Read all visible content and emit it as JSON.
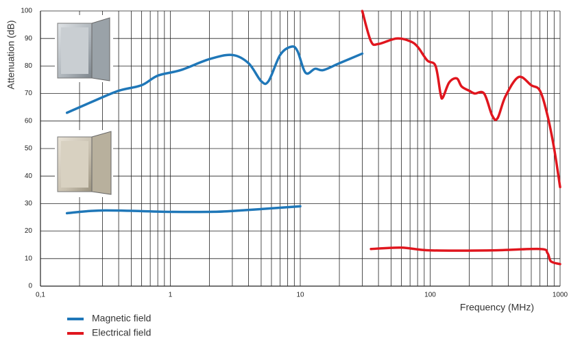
{
  "chart_data": {
    "type": "line",
    "xscale": "log",
    "x_label": "Frequency (MHz)",
    "y_label": "Attenuation (dB)",
    "xlim": [
      0.1,
      1000
    ],
    "ylim": [
      0,
      100
    ],
    "xticks": [
      {
        "value": 0.1,
        "label": "0,1"
      },
      1,
      10,
      100,
      1000
    ],
    "yticks": [
      0,
      10,
      20,
      30,
      40,
      50,
      60,
      70,
      80,
      90,
      100
    ],
    "grid": true,
    "legend": "bottom-left",
    "series": [
      {
        "name": "Magnetic field",
        "color": "#1f77b8",
        "x": [
          0.16,
          0.25,
          0.4,
          0.6,
          0.8,
          1.2,
          2,
          3,
          4,
          5,
          5.7,
          7,
          8.5,
          9.5,
          11,
          13,
          15,
          20,
          30
        ],
        "values": [
          63,
          67,
          71,
          73,
          76.5,
          78.5,
          82.5,
          84,
          81,
          74.5,
          74.5,
          84,
          87,
          85.5,
          77.5,
          79,
          78.5,
          81,
          84.5
        ]
      },
      {
        "name": "Electrical field",
        "color": "#e0161e",
        "x": [
          30,
          35,
          40,
          55,
          70,
          80,
          95,
          110,
          120,
          125,
          140,
          160,
          175,
          200,
          220,
          260,
          300,
          330,
          380,
          480,
          600,
          700,
          800,
          900,
          1000
        ],
        "values": [
          100,
          89,
          88,
          90,
          89,
          87,
          82,
          80,
          70,
          68.5,
          74,
          75.5,
          72.5,
          71,
          70,
          70,
          62,
          61,
          69,
          76,
          73,
          71,
          62,
          50,
          36
        ]
      },
      {
        "color": "#1f77b8",
        "x": [
          0.16,
          0.3,
          1,
          2,
          3,
          10
        ],
        "values": [
          26.5,
          27.5,
          27,
          27,
          27.3,
          29
        ]
      },
      {
        "color": "#e0161e",
        "x": [
          35,
          60,
          100,
          300,
          700,
          800,
          850,
          1000
        ],
        "values": [
          13.5,
          14,
          13,
          13,
          13.5,
          12,
          9,
          8
        ]
      }
    ]
  }
}
